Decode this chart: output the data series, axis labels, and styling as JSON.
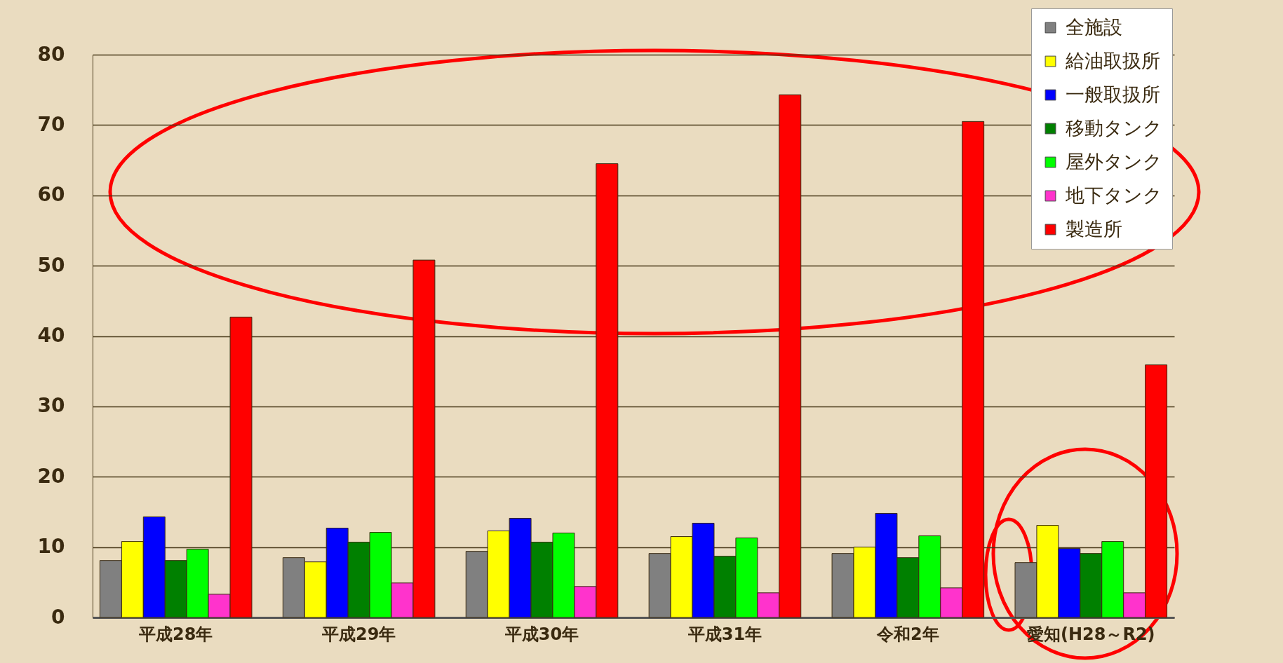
{
  "chart_data": {
    "type": "bar",
    "categories": [
      "平成28年",
      "平成29年",
      "平成30年",
      "平成31年",
      "令和2年",
      "愛知(H28～R2)"
    ],
    "series": [
      {
        "name": "全施設",
        "color": "#808080",
        "values": [
          8.1,
          8.5,
          9.4,
          9.1,
          9.1,
          7.8
        ]
      },
      {
        "name": "給油取扱所",
        "color": "#ffff00",
        "values": [
          10.8,
          7.9,
          12.3,
          11.5,
          10.0,
          13.1
        ]
      },
      {
        "name": "一般取扱所",
        "color": "#0000ff",
        "values": [
          14.3,
          12.7,
          14.1,
          13.4,
          14.8,
          9.8
        ]
      },
      {
        "name": "移動タンク",
        "color": "#008000",
        "values": [
          8.1,
          10.7,
          10.7,
          8.7,
          8.5,
          9.1
        ]
      },
      {
        "name": "屋外タンク",
        "color": "#00ff00",
        "values": [
          9.7,
          12.1,
          12.0,
          11.3,
          11.6,
          10.8
        ]
      },
      {
        "name": "地下タンク",
        "color": "#ff33cc",
        "values": [
          3.3,
          4.9,
          4.4,
          3.5,
          4.2,
          3.5
        ]
      },
      {
        "name": "製造所",
        "color": "#ff0000",
        "values": [
          42.7,
          50.8,
          64.5,
          74.3,
          70.5,
          35.9
        ]
      }
    ],
    "ylim": [
      0,
      80
    ],
    "yticks": [
      0,
      10,
      20,
      30,
      40,
      50,
      60,
      70,
      80
    ],
    "grid": "y",
    "legend": "top right"
  }
}
